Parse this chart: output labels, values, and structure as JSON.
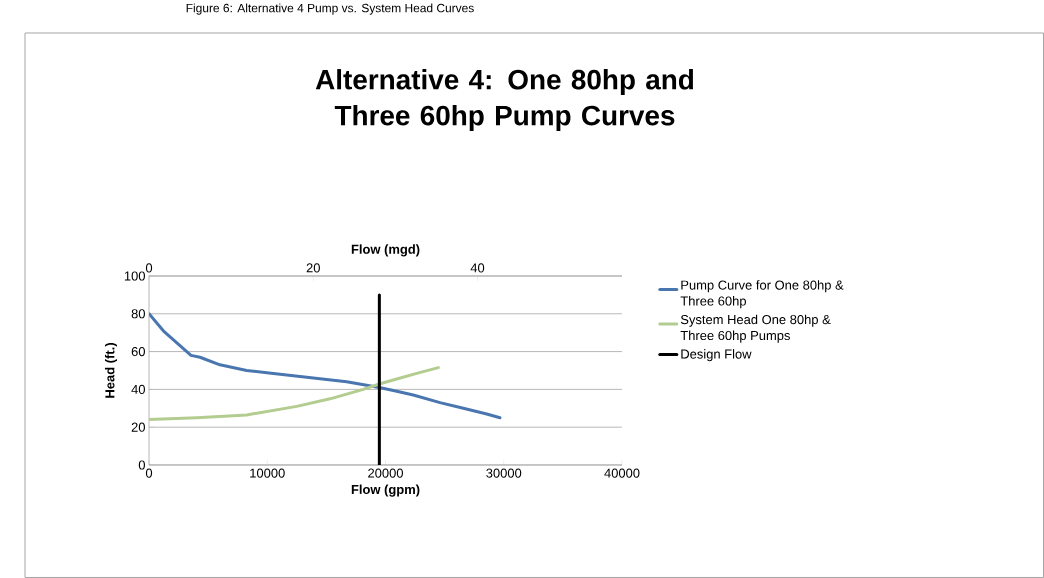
{
  "chart_data": {
    "type": "line",
    "title": "Alternative 4: One 80hp and Three 60hp Pump Curves",
    "xlabel": "Flow (gpm)",
    "ylabel": "Head (ft.)",
    "x2label": "Flow (mgd)",
    "annotations": [
      "Figure 6: Alternative 4 Pump vs. System Head Curves"
    ],
    "xlim": [
      0,
      40000
    ],
    "xticks": [
      0,
      10000,
      20000,
      30000,
      40000
    ],
    "x2lim": [
      0,
      57.6
    ],
    "x2ticks": [
      0,
      20,
      40
    ],
    "ylim": [
      0,
      100
    ],
    "yticks": [
      0,
      20,
      40,
      60,
      80,
      100
    ],
    "grid": "y",
    "legend": "right",
    "series": [
      {
        "name": "Pump Curve for One 80hp & Three 60hp",
        "color": "#4a76b0",
        "x": [
          0,
          1210,
          3550,
          4310,
          6000,
          8260,
          11080,
          13900,
          16720,
          19480,
          20950,
          22350,
          24610,
          26580,
          28560,
          29680
        ],
        "values": [
          80,
          71,
          58,
          57,
          53,
          50,
          48,
          46,
          44,
          41,
          39,
          37,
          33,
          30,
          27,
          25
        ]
      },
      {
        "name": "System Head One 80hp & Three 60hp Pumps",
        "color": "#b3cc8f",
        "x": [
          0,
          4030,
          8260,
          12490,
          15310,
          18120,
          19540,
          20950,
          22640,
          24470
        ],
        "values": [
          24,
          25,
          26.5,
          31,
          35,
          40,
          43,
          45.5,
          48.5,
          51.5
        ]
      },
      {
        "name": "Design Flow",
        "color": "#000000",
        "x": [
          19480,
          19480
        ],
        "values": [
          0,
          90
        ]
      }
    ]
  }
}
